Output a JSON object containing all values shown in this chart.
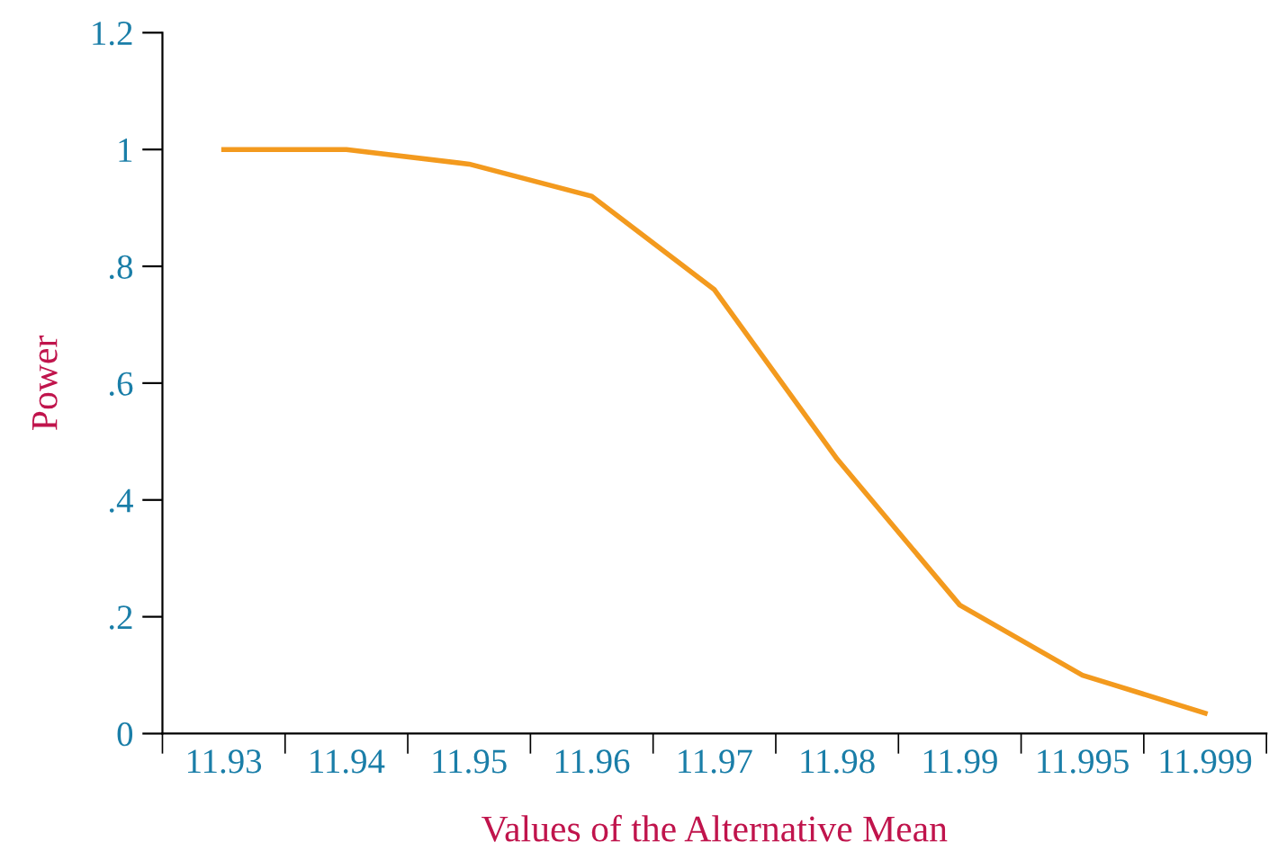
{
  "chart_data": {
    "type": "line",
    "xlabel": "Values of the Alternative Mean",
    "ylabel": "Power",
    "categories": [
      "11.93",
      "11.94",
      "11.95",
      "11.96",
      "11.97",
      "11.98",
      "11.99",
      "11.995",
      "11.999"
    ],
    "series": [
      {
        "color": "#f39a1e",
        "values": [
          1.0,
          1.0,
          0.975,
          0.92,
          0.76,
          0.47,
          0.22,
          0.1,
          0.035
        ]
      }
    ],
    "ylim": [
      0,
      1.2
    ],
    "yticks": [
      0,
      {
        "value": 0.2,
        "label": ".2"
      },
      {
        "value": 0.4,
        "label": ".4"
      },
      {
        "value": 0.6,
        "label": ".6"
      },
      {
        "value": 0.8,
        "label": ".8"
      },
      1,
      1.2
    ],
    "grid": false,
    "marker": "none",
    "line_style": "solid"
  }
}
